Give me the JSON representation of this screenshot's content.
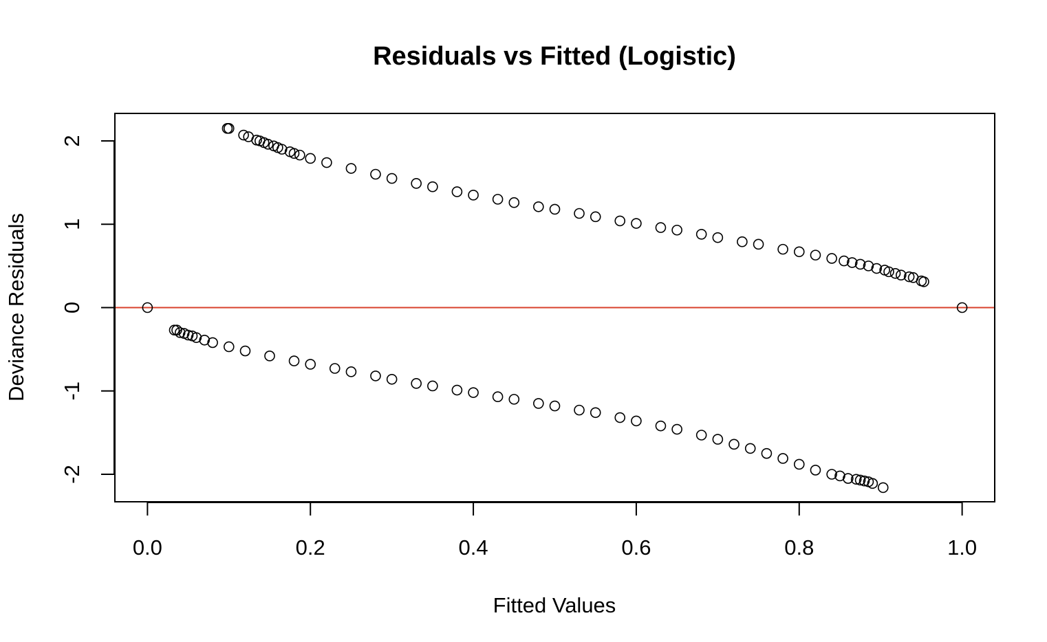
{
  "chart_data": {
    "type": "scatter",
    "title": "Residuals vs Fitted (Logistic)",
    "xlabel": "Fitted Values",
    "ylabel": "Deviance Residuals",
    "xlim": [
      -0.04,
      1.04
    ],
    "ylim": [
      -2.33,
      2.33
    ],
    "x_ticks": [
      0.0,
      0.2,
      0.4,
      0.6,
      0.8,
      1.0
    ],
    "x_tick_labels": [
      "0.0",
      "0.2",
      "0.4",
      "0.6",
      "0.8",
      "1.0"
    ],
    "y_ticks": [
      -2,
      -1,
      0,
      1,
      2
    ],
    "y_tick_labels": [
      "-2",
      "-1",
      "0",
      "1",
      "2"
    ],
    "grid": false,
    "reference_line": {
      "y": 0,
      "color": "#d9402b"
    },
    "point_color": "#000000",
    "series": [
      {
        "residual_type": "positive (y = 1)",
        "x": [
          0.098,
          0.1,
          0.118,
          0.124,
          0.134,
          0.138,
          0.143,
          0.148,
          0.155,
          0.16,
          0.165,
          0.175,
          0.18,
          0.187,
          0.2,
          0.22,
          0.25,
          0.28,
          0.3,
          0.33,
          0.35,
          0.38,
          0.4,
          0.43,
          0.45,
          0.48,
          0.5,
          0.53,
          0.55,
          0.58,
          0.6,
          0.63,
          0.65,
          0.68,
          0.7,
          0.73,
          0.75,
          0.78,
          0.8,
          0.82,
          0.84,
          0.855,
          0.865,
          0.875,
          0.885,
          0.895,
          0.905,
          0.91,
          0.918,
          0.925,
          0.935,
          0.94,
          0.95,
          0.953
        ],
        "y": [
          2.15,
          2.15,
          2.07,
          2.05,
          2.01,
          2.0,
          1.98,
          1.96,
          1.94,
          1.92,
          1.9,
          1.87,
          1.85,
          1.83,
          1.79,
          1.74,
          1.67,
          1.6,
          1.55,
          1.49,
          1.45,
          1.39,
          1.35,
          1.3,
          1.26,
          1.21,
          1.18,
          1.13,
          1.09,
          1.04,
          1.01,
          0.96,
          0.93,
          0.88,
          0.84,
          0.79,
          0.76,
          0.7,
          0.67,
          0.63,
          0.59,
          0.56,
          0.54,
          0.52,
          0.5,
          0.47,
          0.45,
          0.43,
          0.41,
          0.39,
          0.37,
          0.36,
          0.32,
          0.31
        ]
      },
      {
        "residual_type": "negative (y = 0)",
        "x": [
          0.033,
          0.036,
          0.04,
          0.045,
          0.05,
          0.055,
          0.06,
          0.07,
          0.08,
          0.1,
          0.12,
          0.15,
          0.18,
          0.2,
          0.23,
          0.25,
          0.28,
          0.3,
          0.33,
          0.35,
          0.38,
          0.4,
          0.43,
          0.45,
          0.48,
          0.5,
          0.53,
          0.55,
          0.58,
          0.6,
          0.63,
          0.65,
          0.68,
          0.7,
          0.72,
          0.74,
          0.76,
          0.78,
          0.8,
          0.82,
          0.84,
          0.85,
          0.86,
          0.87,
          0.875,
          0.88,
          0.885,
          0.89,
          0.903
        ],
        "y": [
          -0.27,
          -0.27,
          -0.3,
          -0.31,
          -0.33,
          -0.34,
          -0.36,
          -0.39,
          -0.42,
          -0.47,
          -0.52,
          -0.58,
          -0.64,
          -0.68,
          -0.73,
          -0.77,
          -0.82,
          -0.86,
          -0.91,
          -0.94,
          -0.99,
          -1.02,
          -1.07,
          -1.1,
          -1.15,
          -1.18,
          -1.23,
          -1.26,
          -1.32,
          -1.36,
          -1.42,
          -1.46,
          -1.53,
          -1.58,
          -1.64,
          -1.69,
          -1.75,
          -1.81,
          -1.88,
          -1.95,
          -2.0,
          -2.02,
          -2.05,
          -2.06,
          -2.07,
          -2.08,
          -2.09,
          -2.11,
          -2.16
        ]
      },
      {
        "residual_type": "zero residual",
        "x": [
          0.0,
          1.0
        ],
        "y": [
          0.0,
          0.0
        ]
      }
    ]
  }
}
